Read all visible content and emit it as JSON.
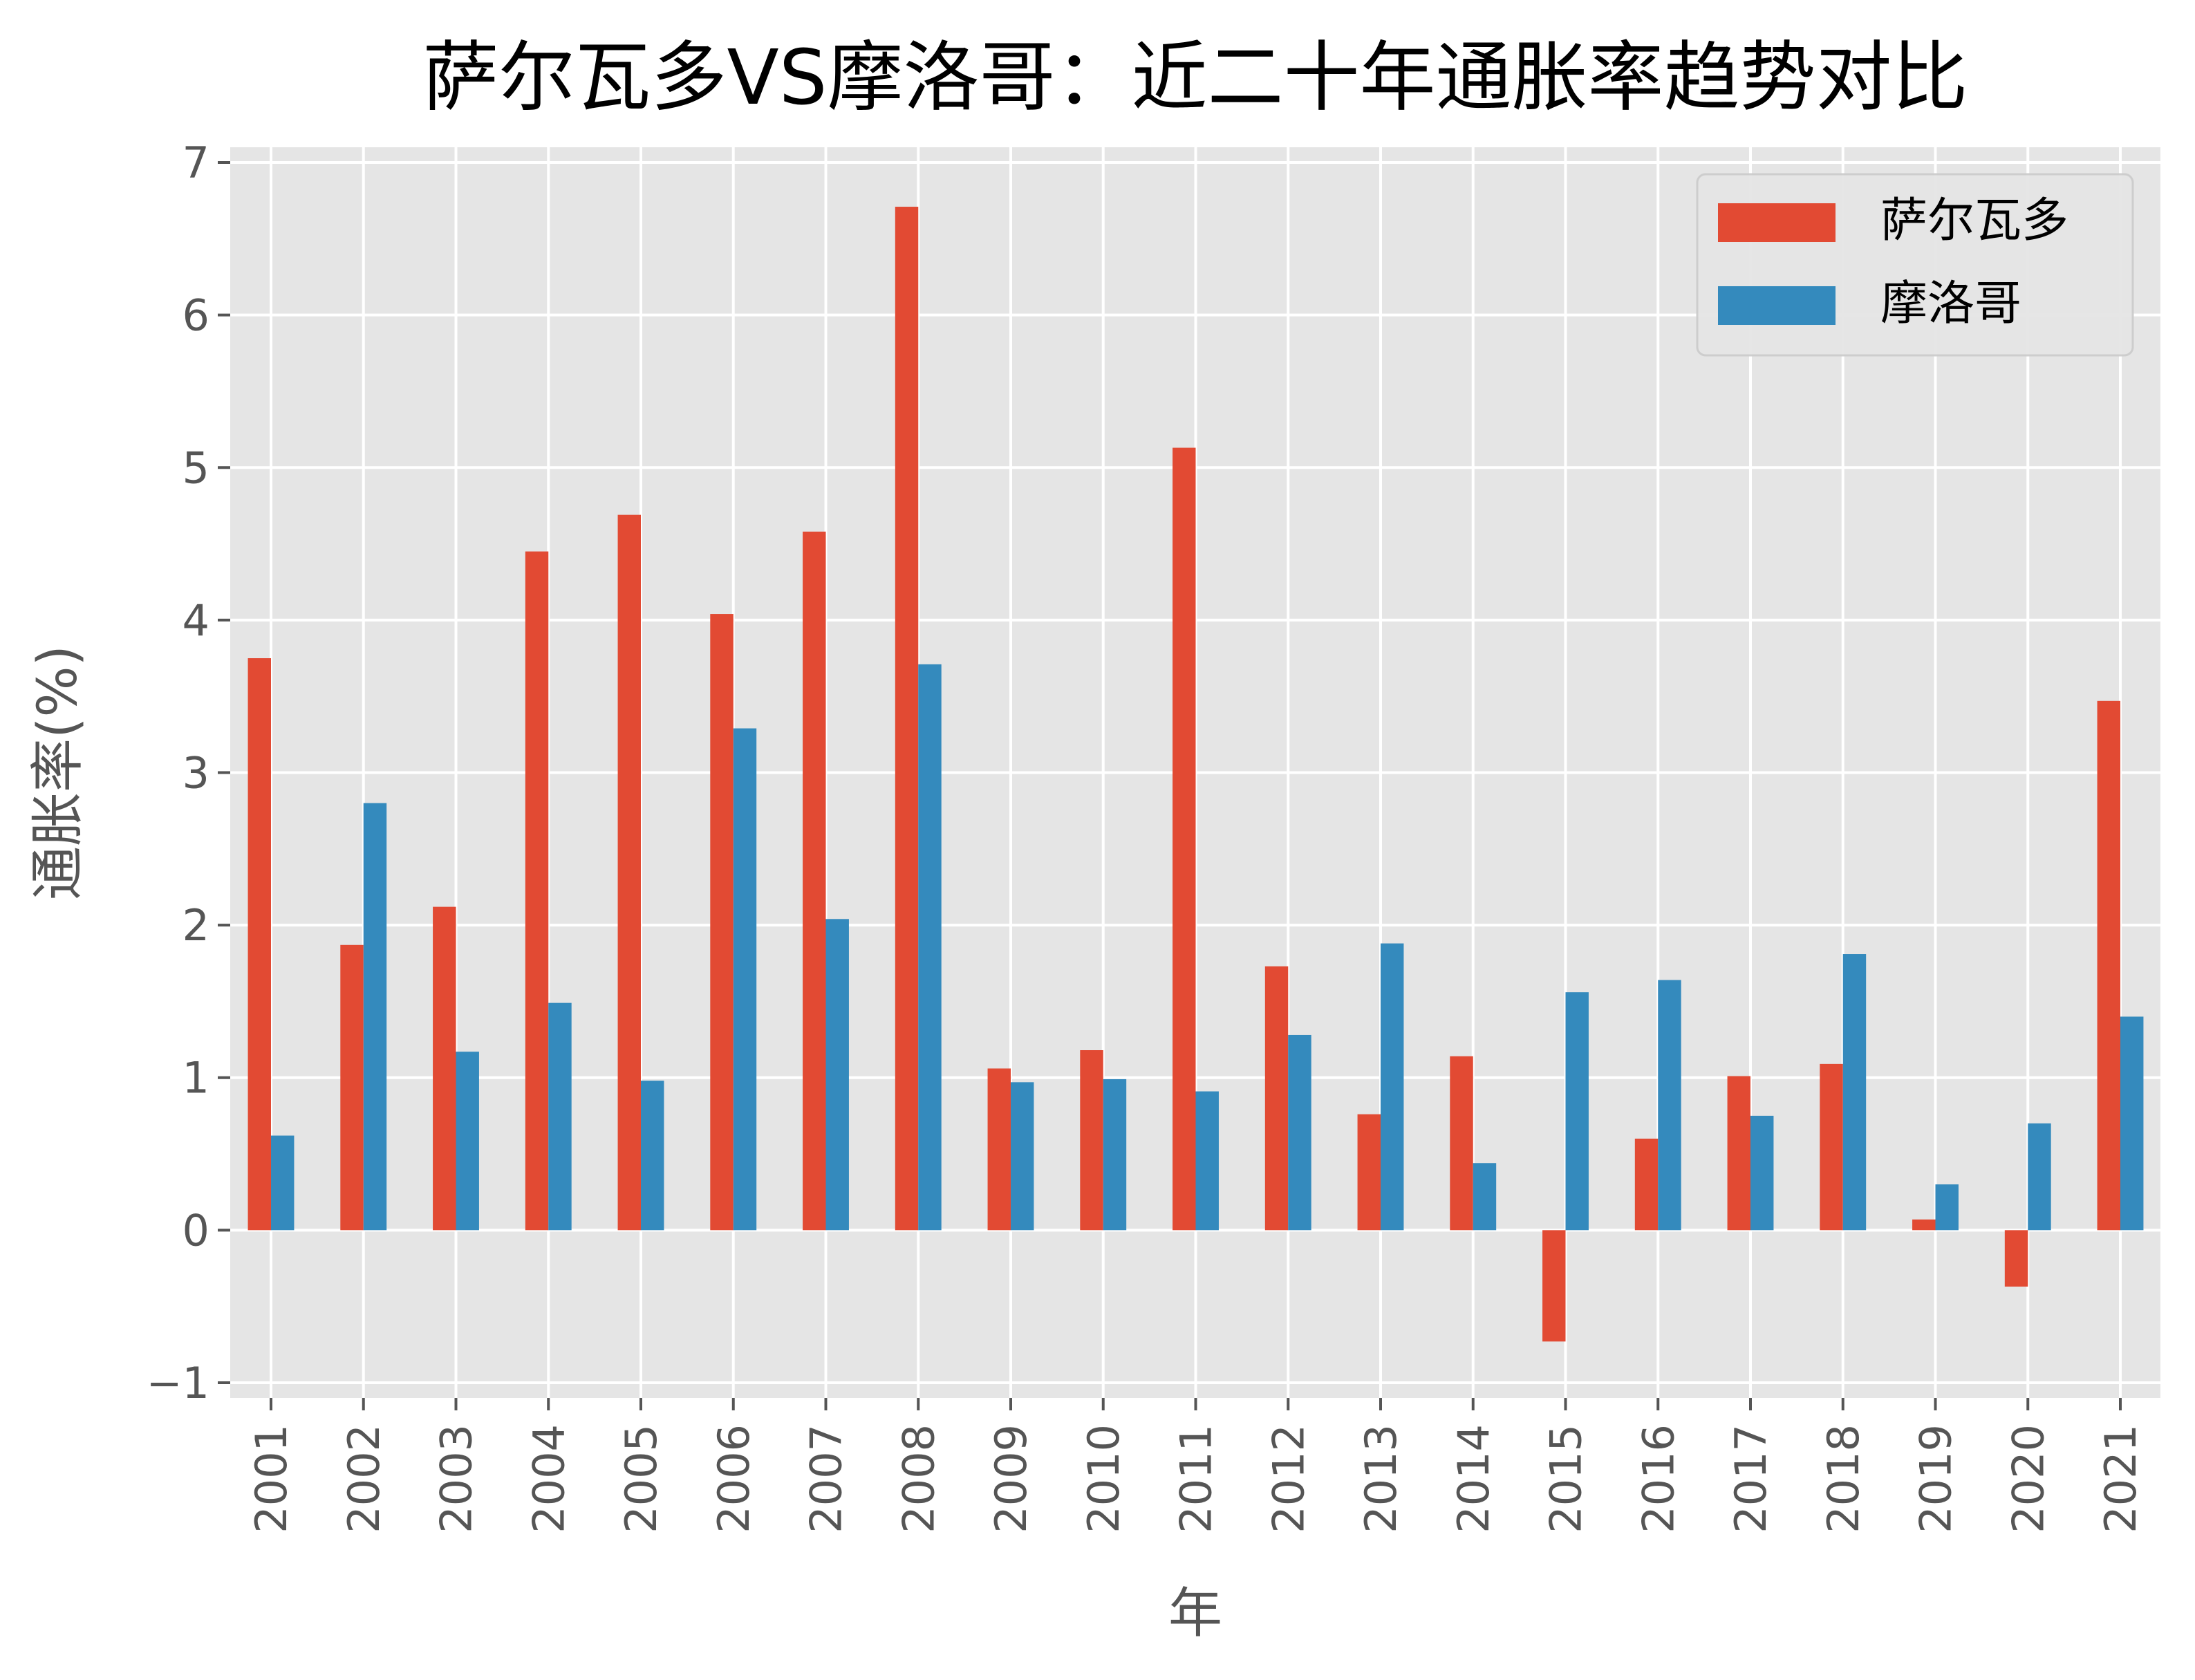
{
  "chart_data": {
    "type": "bar",
    "title": "萨尔瓦多VS摩洛哥：近二十年通胀率趋势对比",
    "xlabel": "年",
    "ylabel": "通胀率(%)",
    "categories": [
      "2001",
      "2002",
      "2003",
      "2004",
      "2005",
      "2006",
      "2007",
      "2008",
      "2009",
      "2010",
      "2011",
      "2012",
      "2013",
      "2014",
      "2015",
      "2016",
      "2017",
      "2018",
      "2019",
      "2020",
      "2021"
    ],
    "series": [
      {
        "name": "萨尔瓦多",
        "color": "#E24A33",
        "values": [
          3.75,
          1.87,
          2.12,
          4.45,
          4.69,
          4.04,
          4.58,
          6.71,
          1.06,
          1.18,
          5.13,
          1.73,
          0.76,
          1.14,
          -0.73,
          0.6,
          1.01,
          1.09,
          0.07,
          -0.37,
          3.47
        ]
      },
      {
        "name": "摩洛哥",
        "color": "#348ABD",
        "values": [
          0.62,
          2.8,
          1.17,
          1.49,
          0.98,
          3.29,
          2.04,
          3.71,
          0.97,
          0.99,
          0.91,
          1.28,
          1.88,
          0.44,
          1.56,
          1.64,
          0.75,
          1.81,
          0.3,
          0.7,
          1.4
        ]
      }
    ],
    "ylim": [
      -1.1,
      7.1
    ],
    "yticks": [
      "−1",
      "0",
      "1",
      "2",
      "3",
      "4",
      "5",
      "6",
      "7"
    ],
    "grid": true,
    "legend_position": "top-right",
    "plot_background": "#E5E5E5",
    "grid_color": "#FFFFFF"
  }
}
